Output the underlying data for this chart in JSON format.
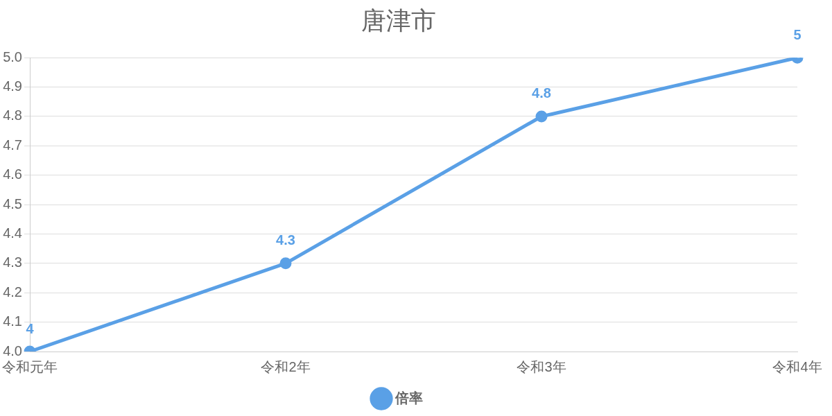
{
  "chart_data": {
    "type": "line",
    "title": "唐津市",
    "categories": [
      "令和元年",
      "令和2年",
      "令和3年",
      "令和4年"
    ],
    "series": [
      {
        "name": "倍率",
        "color": "#5aa0e6",
        "values": [
          4,
          4.3,
          4.8,
          5
        ]
      }
    ],
    "ylim": [
      4,
      5
    ],
    "yticks": [
      {
        "value": 4,
        "label": "4.0"
      },
      {
        "value": 4.1,
        "label": "4.1"
      },
      {
        "value": 4.2,
        "label": "4.2"
      },
      {
        "value": 4.3,
        "label": "4.3"
      },
      {
        "value": 4.4,
        "label": "4.4"
      },
      {
        "value": 4.5,
        "label": "4.5"
      },
      {
        "value": 4.6,
        "label": "4.6"
      },
      {
        "value": 4.7,
        "label": "4.7"
      },
      {
        "value": 4.8,
        "label": "4.8"
      },
      {
        "value": 4.9,
        "label": "4.9"
      },
      {
        "value": 5,
        "label": "5.0"
      }
    ],
    "grid": "y",
    "legend": "bottom",
    "marker": "circle",
    "line_style": "solid",
    "data_labels": true
  }
}
